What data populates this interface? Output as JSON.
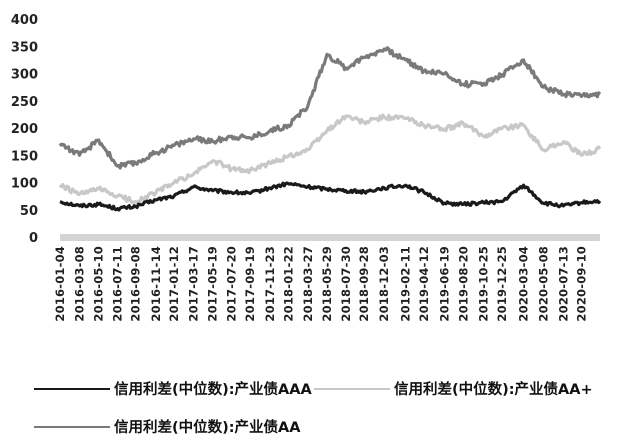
{
  "chart_data": {
    "type": "line",
    "title": "",
    "xlabel": "",
    "ylabel": "",
    "ylim": [
      0,
      400
    ],
    "yticks": [
      0,
      50,
      100,
      150,
      200,
      250,
      300,
      350,
      400
    ],
    "xlim": [
      "2016-01-04",
      "2020-11-10"
    ],
    "xtick_labels": [
      "2016-01-04",
      "2016-03-08",
      "2016-05-10",
      "2016-07-11",
      "2016-09-08",
      "2016-11-14",
      "2017-01-12",
      "2017-03-17",
      "2017-05-19",
      "2017-07-20",
      "2017-09-19",
      "2017-11-23",
      "2018-01-22",
      "2018-03-27",
      "2018-05-29",
      "2018-07-30",
      "2018-09-28",
      "2018-12-03",
      "2019-02-11",
      "2019-04-12",
      "2019-06-19",
      "2019-08-20",
      "2019-10-25",
      "2019-12-25",
      "2020-03-04",
      "2020-05-08",
      "2020-07-13",
      "2020-09-10"
    ],
    "grid": false,
    "legend_position": "bottom",
    "series": [
      {
        "name": "信用利差(中位数):产业债AAA",
        "color": "#1a1a1a",
        "x": [
          "2016-01-04",
          "2016-03-08",
          "2016-05-10",
          "2016-07-11",
          "2016-09-08",
          "2016-11-14",
          "2017-01-12",
          "2017-03-17",
          "2017-05-19",
          "2017-07-20",
          "2017-09-19",
          "2017-11-23",
          "2018-01-22",
          "2018-03-27",
          "2018-05-29",
          "2018-07-30",
          "2018-09-28",
          "2018-12-03",
          "2019-02-11",
          "2019-04-12",
          "2019-06-19",
          "2019-08-20",
          "2019-10-25",
          "2019-12-25",
          "2020-03-04",
          "2020-05-08",
          "2020-07-13",
          "2020-09-10",
          "2020-11-10"
        ],
        "values": [
          65,
          57,
          60,
          52,
          56,
          68,
          75,
          92,
          85,
          82,
          80,
          90,
          98,
          92,
          88,
          85,
          83,
          90,
          95,
          82,
          62,
          60,
          63,
          65,
          95,
          62,
          57,
          63,
          66
        ]
      },
      {
        "name": "信用利差(中位数):产业债AA+",
        "color": "#c8c8c8",
        "x": [
          "2016-01-04",
          "2016-03-08",
          "2016-05-10",
          "2016-07-11",
          "2016-09-08",
          "2016-11-14",
          "2017-01-12",
          "2017-03-17",
          "2017-05-19",
          "2017-07-20",
          "2017-09-19",
          "2017-11-23",
          "2018-01-22",
          "2018-03-27",
          "2018-05-29",
          "2018-07-30",
          "2018-09-28",
          "2018-12-03",
          "2019-02-11",
          "2019-04-12",
          "2019-06-19",
          "2019-08-20",
          "2019-10-25",
          "2019-12-25",
          "2020-03-04",
          "2020-05-08",
          "2020-07-13",
          "2020-09-10",
          "2020-11-10"
        ],
        "values": [
          95,
          78,
          88,
          75,
          65,
          82,
          100,
          115,
          140,
          125,
          122,
          135,
          148,
          160,
          195,
          222,
          210,
          220,
          218,
          205,
          198,
          208,
          185,
          200,
          205,
          160,
          175,
          150,
          162
        ]
      },
      {
        "name": "信用利差(中位数):产业债AA",
        "color": "#7a7a7a",
        "x": [
          "2016-01-04",
          "2016-03-08",
          "2016-05-10",
          "2016-07-11",
          "2016-09-08",
          "2016-11-14",
          "2017-01-12",
          "2017-03-17",
          "2017-05-19",
          "2017-07-20",
          "2017-09-19",
          "2017-11-23",
          "2018-01-22",
          "2018-03-27",
          "2018-05-29",
          "2018-07-30",
          "2018-09-28",
          "2018-12-03",
          "2019-02-11",
          "2019-04-12",
          "2019-06-19",
          "2019-08-20",
          "2019-10-25",
          "2019-12-25",
          "2020-03-04",
          "2020-05-08",
          "2020-07-13",
          "2020-09-10",
          "2020-11-10"
        ],
        "values": [
          172,
          150,
          178,
          130,
          135,
          155,
          168,
          180,
          175,
          185,
          182,
          195,
          205,
          240,
          335,
          310,
          330,
          345,
          325,
          305,
          300,
          280,
          282,
          298,
          325,
          275,
          262,
          258,
          262
        ]
      }
    ]
  }
}
